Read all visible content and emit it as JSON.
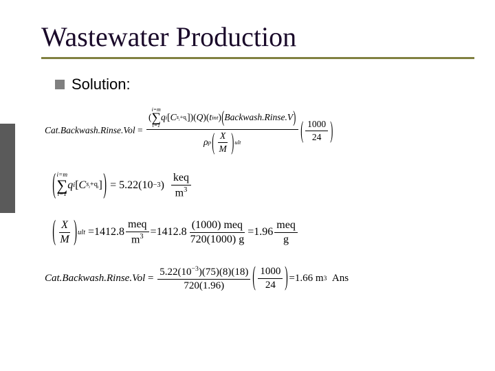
{
  "title": "Wastewater Production",
  "bullet_label": "Solution:",
  "colors": {
    "title_color": "#1a0a2a",
    "underline_color": "#808040",
    "bullet_color": "#808080",
    "sidebar_color": "#5a5a5a",
    "text_color": "#000000",
    "background": "#ffffff"
  },
  "eq1": {
    "lhs_label": "Cat.Backwash.Rinse.Vol",
    "sum_top": "i=m",
    "sum_bot": "i=1",
    "q_var": "q",
    "q_sub": "i",
    "C_var": "C",
    "C_sub": "s",
    "C_subsub": "i",
    "C_sup_prefix": "+q",
    "C_sup_sub": "i",
    "Q": "Q",
    "tint": "t",
    "tint_sub": "int",
    "bw_label": "Backwash.Rinse.V",
    "rho": "ρ",
    "rho_sub": "p",
    "X": "X",
    "M": "M",
    "ult": "ult",
    "const_num": "1000",
    "const_den": "24"
  },
  "eq2": {
    "sum_top": "i=m",
    "sum_bot": "i=1",
    "q_var": "q",
    "q_sub": "i",
    "C_var": "C",
    "C_sub": "s",
    "C_subsub": "i",
    "C_sup_prefix": "+q",
    "C_sup_sub": "i",
    "value": "5.22",
    "exp_paren": "10",
    "exp_pow": "−3",
    "unit_num": "keq",
    "unit_den": "m",
    "unit_den_sup": "3"
  },
  "eq3": {
    "X": "X",
    "M": "M",
    "ult": "ult",
    "v1": "1412.8",
    "u1_num": "meq",
    "u1_den": "m",
    "u1_den_sup": "3",
    "v2": "1412.8",
    "f2_num_a": "(1000)",
    "f2_num_b": "meq",
    "f2_den_a": "720(1000)",
    "f2_den_b": "g",
    "v3": "1.96",
    "u3_num": "meq",
    "u3_den": "g"
  },
  "eq4": {
    "lhs_label": "Cat.Backwash.Rinse.Vol",
    "num_coeff": "5.22",
    "num_exp_base": "10",
    "num_exp_pow": "−3",
    "num_p1": "(75)",
    "num_p2": "(8)",
    "num_p3": "(18)",
    "den": "720(1.96)",
    "const_num": "1000",
    "const_den": "24",
    "result": "1.66",
    "result_unit_base": "m",
    "result_unit_sup": "3",
    "ans": "Ans"
  }
}
